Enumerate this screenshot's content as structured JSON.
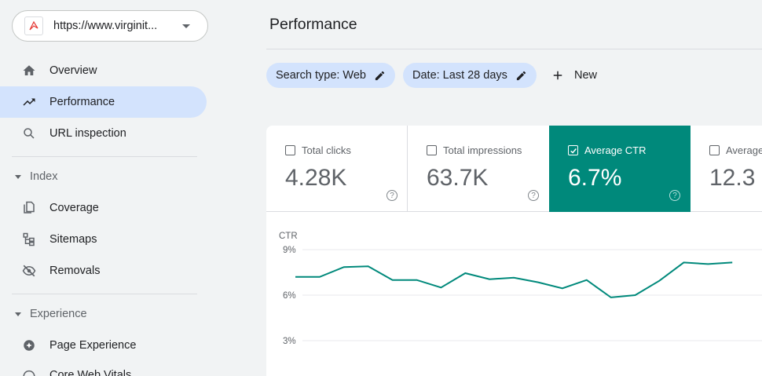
{
  "property": {
    "url": "https://www.virginit..."
  },
  "nav": {
    "items": [
      {
        "label": "Overview",
        "icon": "home-icon"
      },
      {
        "label": "Performance",
        "icon": "trending-up-icon"
      },
      {
        "label": "URL inspection",
        "icon": "search-icon"
      }
    ],
    "index_section": "Index",
    "index_items": [
      {
        "label": "Coverage",
        "icon": "file-copy-icon"
      },
      {
        "label": "Sitemaps",
        "icon": "sitemap-icon"
      },
      {
        "label": "Removals",
        "icon": "eye-off-icon"
      }
    ],
    "experience_section": "Experience",
    "experience_items": [
      {
        "label": "Page Experience",
        "icon": "page-experience-icon"
      },
      {
        "label": "Core Web Vitals",
        "icon": "speed-icon"
      }
    ]
  },
  "header": {
    "title": "Performance"
  },
  "filters": {
    "search_type": "Search type: Web",
    "date": "Date: Last 28 days",
    "new_label": "New"
  },
  "metrics": [
    {
      "label": "Total clicks",
      "value": "4.28K",
      "checked": false
    },
    {
      "label": "Total impressions",
      "value": "63.7K",
      "checked": false
    },
    {
      "label": "Average CTR",
      "value": "6.7%",
      "checked": true
    },
    {
      "label": "Average position",
      "value": "12.3",
      "checked": false
    }
  ],
  "colors": {
    "accent": "#00897b",
    "chip": "#d3e3fd",
    "active_nav": "#d3e3fd"
  },
  "chart_data": {
    "type": "line",
    "ylabel": "CTR",
    "yticks": [
      "9%",
      "6%",
      "3%"
    ],
    "ylim": [
      0,
      9
    ],
    "series": [
      {
        "values": [
          7.2,
          7.2,
          7.85,
          7.9,
          7.0,
          7.0,
          6.5,
          7.45,
          7.05,
          7.15,
          6.85,
          6.45,
          7.0,
          5.85,
          6.0,
          6.95,
          8.15,
          8.05,
          8.15
        ]
      }
    ]
  }
}
